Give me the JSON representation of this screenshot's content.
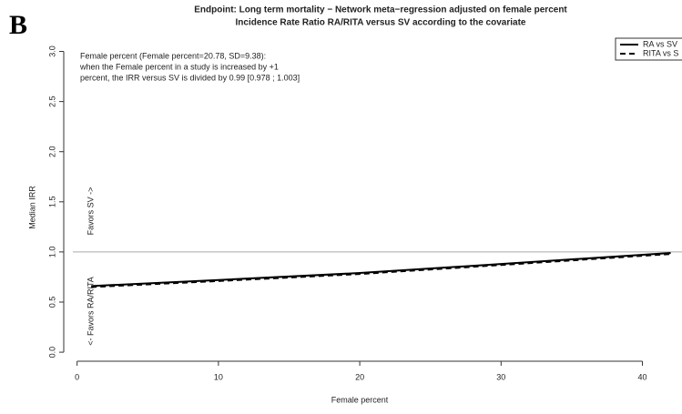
{
  "panel_label": "B",
  "chart_data": {
    "type": "line",
    "title": "Endpoint: Long term mortality − Network meta−regression adjusted on female percent",
    "subtitle": "Incidence Rate Ratio RA/RITA versus SV according to the covariate",
    "annotations": [
      "Female percent (Female percent=20.78, SD=9.38):",
      "when the Female percent in a study is increased by +1",
      "percent, the IRR versus SV is divided by 0.99 [0.978 ; 1.003]"
    ],
    "favors_up": "Favors SV ->",
    "favors_down": "<- Favors RA/RITA",
    "xlabel": "Female percent",
    "ylabel": "Median IRR",
    "x": [
      1,
      10,
      20,
      30,
      42
    ],
    "series": [
      {
        "name": "RA vs SV",
        "color": "#000000",
        "dash": "solid",
        "values": [
          0.66,
          0.72,
          0.79,
          0.88,
          0.99
        ]
      },
      {
        "name": "RITA vs S",
        "color": "#000000",
        "dash": "dashed",
        "values": [
          0.65,
          0.71,
          0.78,
          0.87,
          0.98
        ]
      }
    ],
    "reference_line": 1,
    "xlim": [
      -0.3,
      42.8
    ],
    "ylim": [
      -0.09,
      3.15
    ],
    "xticks": [
      0,
      10,
      20,
      30,
      40
    ],
    "yticks": [
      {
        "value": 0,
        "label": "0.0"
      },
      0.5,
      {
        "value": 1,
        "label": "1.0"
      },
      1.5,
      {
        "value": 2,
        "label": "2.0"
      },
      2.5,
      {
        "value": 3,
        "label": "3.0"
      }
    ],
    "legend": "top-right"
  }
}
